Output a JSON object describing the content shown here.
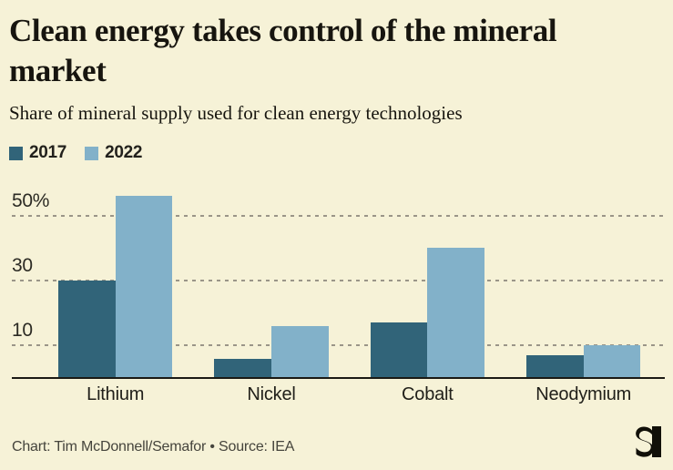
{
  "header": {
    "title": "Clean energy takes control of the mineral market",
    "subtitle": "Share of mineral supply used for clean energy technologies"
  },
  "legend": {
    "items": [
      {
        "label": "2017",
        "color": "#316479"
      },
      {
        "label": "2022",
        "color": "#82B1C9"
      }
    ]
  },
  "chart_data": {
    "type": "bar",
    "title": "Clean energy takes control of the mineral market",
    "subtitle": "Share of mineral supply used for clean energy technologies",
    "categories": [
      "Lithium",
      "Nickel",
      "Cobalt",
      "Neodymium"
    ],
    "series": [
      {
        "name": "2017",
        "color": "#316479",
        "values": [
          30,
          6,
          17,
          7
        ]
      },
      {
        "name": "2022",
        "color": "#82B1C9",
        "values": [
          56,
          16,
          40,
          10
        ]
      }
    ],
    "xlabel": "",
    "ylabel": "",
    "ylim": [
      0,
      60
    ],
    "yticks": [
      {
        "value": 50,
        "label": "50%"
      },
      {
        "value": 30,
        "label": "30"
      },
      {
        "value": 10,
        "label": "10"
      }
    ],
    "grid": "horizontal-dashed",
    "legend_position": "top-left"
  },
  "footer": {
    "credit": "Chart: Tim McDonnell/Semafor • Source: IEA",
    "logo": "semafor-logo"
  },
  "colors": {
    "background": "#F6F2D7",
    "bar_2017": "#316479",
    "bar_2022": "#82B1C9",
    "gridline": "#9A9588",
    "baseline": "#1B1A15",
    "text": "#17150F"
  }
}
